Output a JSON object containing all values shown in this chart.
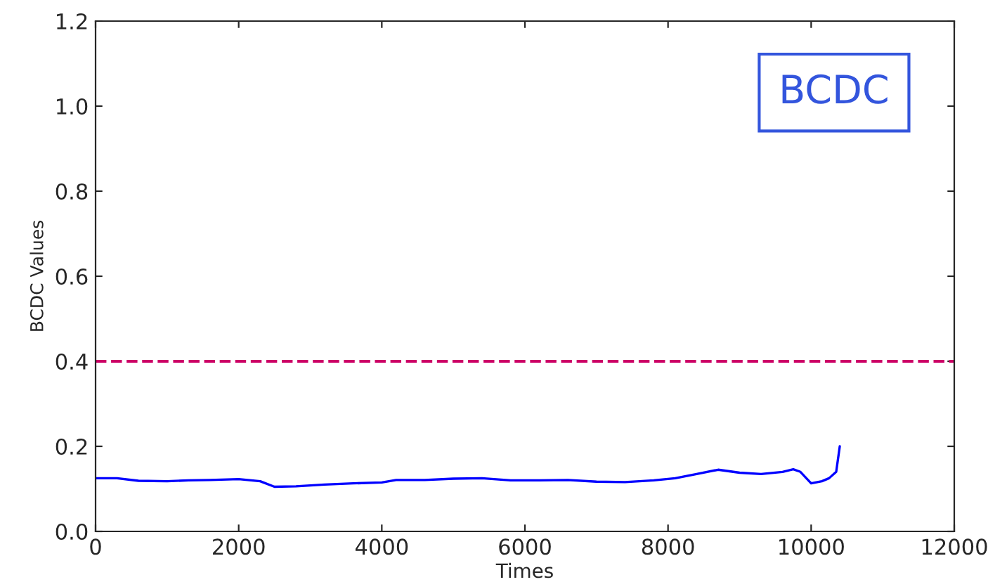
{
  "chart_data": {
    "type": "line",
    "xlabel": "Times",
    "ylabel": "BCDC Values",
    "x": [
      0,
      300,
      600,
      1000,
      1300,
      1600,
      2000,
      2300,
      2500,
      2800,
      3200,
      3600,
      4000,
      4200,
      4600,
      5000,
      5400,
      5800,
      6200,
      6600,
      7000,
      7400,
      7800,
      8100,
      8400,
      8700,
      9000,
      9300,
      9600,
      9750,
      9850,
      10000,
      10150,
      10250,
      10350,
      10400
    ],
    "series": [
      {
        "color": "#0000ff",
        "values": [
          0.125,
          0.125,
          0.119,
          0.118,
          0.12,
          0.121,
          0.123,
          0.118,
          0.105,
          0.106,
          0.11,
          0.113,
          0.115,
          0.121,
          0.121,
          0.124,
          0.125,
          0.12,
          0.12,
          0.121,
          0.117,
          0.116,
          0.12,
          0.125,
          0.135,
          0.145,
          0.138,
          0.135,
          0.14,
          0.146,
          0.14,
          0.113,
          0.118,
          0.125,
          0.14,
          0.2
        ]
      }
    ],
    "xlim": [
      0,
      12000
    ],
    "ylim": [
      0,
      1.2
    ],
    "xticks": [
      0,
      2000,
      4000,
      6000,
      8000,
      10000,
      12000
    ],
    "yticks": [
      {
        "value": 0,
        "label": "0.0"
      },
      {
        "value": 0.2,
        "label": "0.2"
      },
      {
        "value": 0.4,
        "label": "0.4"
      },
      {
        "value": 0.6,
        "label": "0.6"
      },
      {
        "value": 0.8,
        "label": "0.8"
      },
      {
        "value": 1.0,
        "label": "1.0"
      },
      {
        "value": 1.2,
        "label": "1.2"
      }
    ],
    "ref_lines": [
      {
        "axis": "y",
        "value": 0.4,
        "color": "#cc0066",
        "line_style": "dashed"
      }
    ],
    "annotations": [
      "BCDC"
    ],
    "grid": false
  }
}
